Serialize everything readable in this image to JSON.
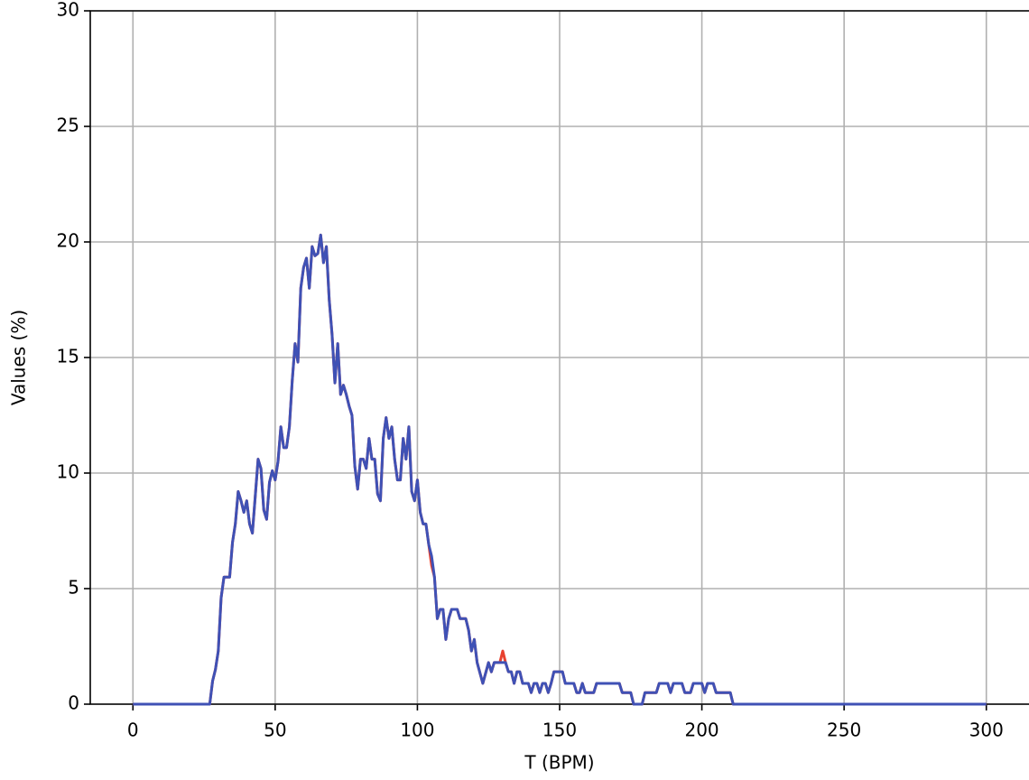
{
  "chart_data": {
    "type": "line",
    "x_label": "T (BPM)",
    "y_label": "Values (%)",
    "x": [
      0,
      27,
      28,
      29,
      30,
      31,
      32,
      34,
      35,
      36,
      37,
      38,
      39,
      40,
      41,
      42,
      43,
      44,
      45,
      46,
      47,
      48,
      49,
      50,
      51,
      52,
      53,
      54,
      55,
      56,
      57,
      58,
      59,
      60,
      61,
      62,
      63,
      64,
      65,
      66,
      67,
      68,
      69,
      70,
      71,
      72,
      73,
      74,
      75,
      76,
      77,
      78,
      79,
      80,
      81,
      82,
      83,
      84,
      85,
      86,
      87,
      88,
      89,
      90,
      91,
      92,
      93,
      94,
      95,
      96,
      97,
      98,
      99,
      100,
      101,
      102,
      103,
      104,
      105,
      106,
      107,
      108,
      109,
      110,
      111,
      112,
      114,
      115,
      117,
      118,
      119,
      120,
      121,
      123,
      125,
      126,
      127,
      129,
      130,
      131,
      132,
      133,
      134,
      135,
      136,
      137,
      139,
      140,
      141,
      142,
      143,
      144,
      145,
      146,
      147,
      148,
      151,
      152,
      155,
      156,
      157,
      158,
      159,
      162,
      163,
      171,
      172,
      175,
      176,
      179,
      180,
      184,
      185,
      188,
      189,
      190,
      193,
      194,
      196,
      197,
      200,
      201,
      202,
      204,
      205,
      210,
      211,
      300
    ],
    "series": [
      {
        "color": "#e8412f",
        "values": [
          0,
          0,
          1,
          1.5,
          2.3,
          4.6,
          5.5,
          5.5,
          7,
          7.8,
          9.2,
          8.8,
          8.3,
          8.8,
          7.8,
          7.4,
          9,
          10.6,
          10.2,
          8.4,
          8,
          9.6,
          10.1,
          9.7,
          10.5,
          12,
          11.1,
          11.1,
          12,
          14,
          15.6,
          14.8,
          18,
          18.9,
          19.3,
          18,
          19.8,
          19.4,
          19.5,
          20.3,
          19.1,
          19.8,
          17.5,
          16,
          13.9,
          15.6,
          13.4,
          13.8,
          13.4,
          12.9,
          12.5,
          10.3,
          9.3,
          10.6,
          10.6,
          10.2,
          11.5,
          10.6,
          10.6,
          9.1,
          8.8,
          11.5,
          12.4,
          11.5,
          12,
          10.6,
          9.7,
          9.7,
          11.5,
          10.6,
          12,
          9.2,
          8.8,
          9.7,
          8.3,
          7.8,
          7.8,
          6.9,
          6.0,
          5.5,
          3.7,
          4.1,
          4.1,
          2.8,
          3.7,
          4.1,
          4.1,
          3.7,
          3.7,
          3.2,
          2.3,
          2.8,
          1.8,
          0.9,
          1.8,
          1.4,
          1.8,
          1.8,
          2.3,
          1.8,
          1.4,
          1.4,
          0.9,
          1.4,
          1.4,
          0.9,
          0.9,
          0.5,
          0.9,
          0.9,
          0.5,
          0.9,
          0.9,
          0.5,
          0.9,
          1.4,
          1.4,
          0.9,
          0.9,
          0.5,
          0.5,
          0.9,
          0.5,
          0.5,
          0.9,
          0.9,
          0.5,
          0.5,
          0,
          0,
          0.5,
          0.5,
          0.9,
          0.9,
          0.5,
          0.9,
          0.9,
          0.5,
          0.5,
          0.9,
          0.9,
          0.5,
          0.9,
          0.9,
          0.5,
          0.5,
          0,
          0
        ]
      },
      {
        "color": "#3f51b5",
        "values": [
          0,
          0,
          1,
          1.5,
          2.3,
          4.6,
          5.5,
          5.5,
          7,
          7.8,
          9.2,
          8.8,
          8.3,
          8.8,
          7.8,
          7.4,
          9,
          10.6,
          10.2,
          8.4,
          8,
          9.6,
          10.1,
          9.7,
          10.5,
          12,
          11.1,
          11.1,
          12,
          14,
          15.6,
          14.8,
          18,
          18.9,
          19.3,
          18,
          19.8,
          19.4,
          19.5,
          20.3,
          19.1,
          19.8,
          17.5,
          16,
          13.9,
          15.6,
          13.4,
          13.8,
          13.4,
          12.9,
          12.5,
          10.3,
          9.3,
          10.6,
          10.6,
          10.2,
          11.5,
          10.6,
          10.6,
          9.1,
          8.8,
          11.5,
          12.4,
          11.5,
          12,
          10.6,
          9.7,
          9.7,
          11.5,
          10.6,
          12,
          9.2,
          8.8,
          9.7,
          8.3,
          7.8,
          7.8,
          6.9,
          6.4,
          5.5,
          3.7,
          4.1,
          4.1,
          2.8,
          3.7,
          4.1,
          4.1,
          3.7,
          3.7,
          3.2,
          2.3,
          2.8,
          1.8,
          0.9,
          1.8,
          1.4,
          1.8,
          1.8,
          1.8,
          1.8,
          1.4,
          1.4,
          0.9,
          1.4,
          1.4,
          0.9,
          0.9,
          0.5,
          0.9,
          0.9,
          0.5,
          0.9,
          0.9,
          0.5,
          0.9,
          1.4,
          1.4,
          0.9,
          0.9,
          0.5,
          0.5,
          0.9,
          0.5,
          0.5,
          0.9,
          0.9,
          0.5,
          0.5,
          0,
          0,
          0.5,
          0.5,
          0.9,
          0.9,
          0.5,
          0.9,
          0.9,
          0.5,
          0.5,
          0.9,
          0.9,
          0.5,
          0.9,
          0.9,
          0.5,
          0.5,
          0,
          0
        ]
      }
    ],
    "xlim": [
      -15,
      315
    ],
    "ylim": [
      0,
      30
    ],
    "xticks": [
      0,
      50,
      100,
      150,
      200,
      250,
      300
    ],
    "yticks": [
      0,
      5,
      10,
      15,
      20,
      25,
      30
    ],
    "grid": true
  }
}
